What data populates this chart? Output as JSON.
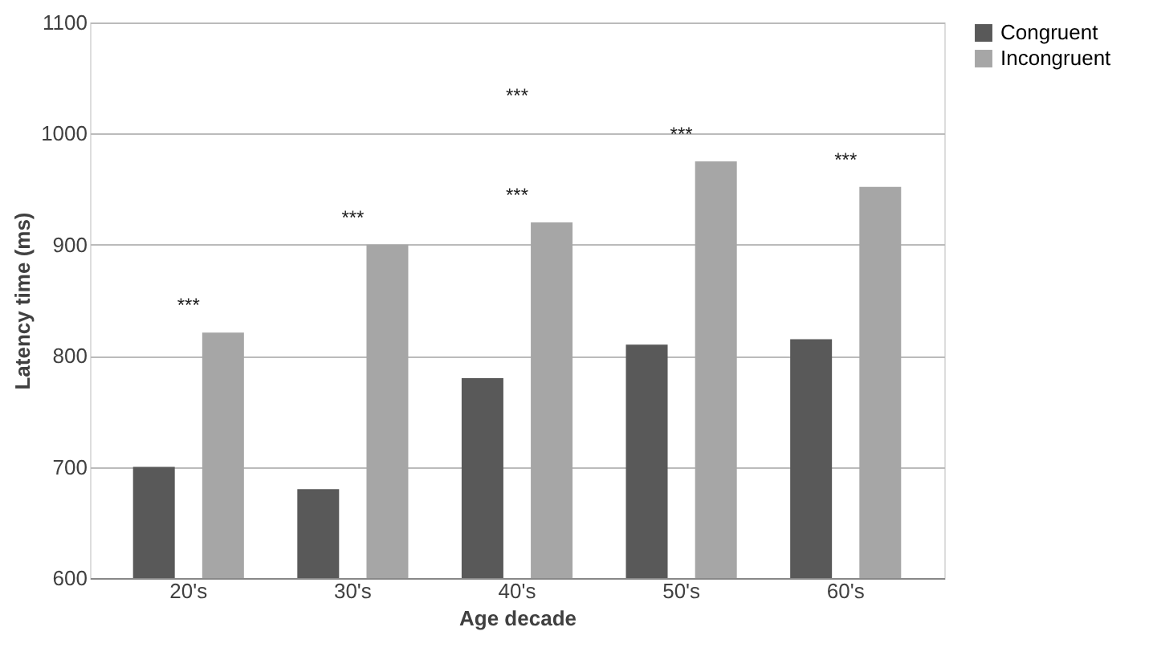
{
  "chart_data": {
    "type": "bar",
    "xlabel": "Age decade",
    "ylabel": "Latency time (ms)",
    "categories": [
      "20's",
      "30's",
      "40's",
      "50's",
      "60's"
    ],
    "series": [
      {
        "name": "Congruent",
        "color": "#595959",
        "values": [
          700,
          680,
          780,
          810,
          815
        ]
      },
      {
        "name": "Incongruent",
        "color": "#a6a6a6",
        "values": [
          821,
          900,
          920,
          975,
          952
        ]
      }
    ],
    "ylim": [
      600,
      1100
    ],
    "yticks": [
      600,
      700,
      800,
      900,
      1000,
      1100
    ],
    "grid": "y",
    "legend": "right",
    "annotations": [
      "***",
      "***",
      "***",
      "***",
      "***",
      "***"
    ]
  }
}
